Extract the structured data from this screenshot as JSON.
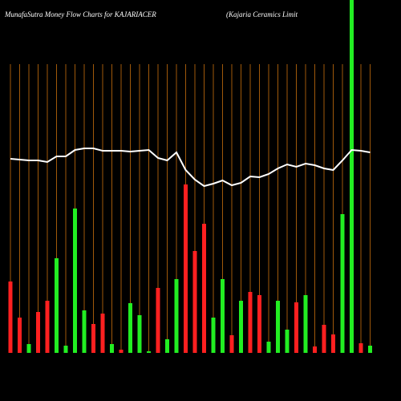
{
  "chart_data": {
    "type": "bar",
    "title": "MunafaSutra  Money Flow  Charts for KAJARIACER",
    "subtitle": "(Kajaria  Ceramics Limit",
    "ylim": [
      0,
      440
    ],
    "grid_color": "#a0590a",
    "series": [
      {
        "type": "bar",
        "colors": [
          "#ff2020",
          "#ff2020",
          "#22ee22",
          "#ff2020",
          "#ff2020",
          "#22ee22",
          "#22ee22",
          "#22ee22",
          "#22ee22",
          "#ff2020",
          "#ff2020",
          "#22ee22",
          "#ff2020",
          "#22ee22",
          "#22ee22",
          "#22ee22",
          "#ff2020",
          "#22ee22",
          "#22ee22",
          "#ff2020",
          "#ff2020",
          "#ff2020",
          "#22ee22",
          "#22ee22",
          "#ff2020",
          "#22ee22",
          "#ff2020",
          "#ff2020",
          "#22ee22",
          "#22ee22",
          "#22ee22",
          "#ff2020",
          "#22ee22",
          "#ff2020",
          "#ff2020",
          "#ff2020",
          "#22ee22",
          "#22ee22",
          "#ff2020",
          "#22ee22"
        ],
        "values": [
          89,
          44,
          11,
          51,
          65,
          118,
          9,
          180,
          53,
          36,
          49,
          11,
          4,
          62,
          47,
          2,
          81,
          17,
          92,
          210,
          127,
          161,
          44,
          92,
          22,
          65,
          76,
          72,
          14,
          65,
          29,
          63,
          72,
          8,
          35,
          23,
          173,
          440,
          12,
          9
        ]
      },
      {
        "type": "line",
        "color": "#ffffff",
        "values": [
          242,
          241,
          240,
          240,
          238,
          245,
          245,
          253,
          255,
          255,
          252,
          252,
          252,
          251,
          252,
          253,
          243,
          240,
          250,
          228,
          216,
          208,
          211,
          215,
          209,
          212,
          220,
          219,
          223,
          230,
          235,
          232,
          236,
          234,
          230,
          228,
          240,
          253,
          252,
          250
        ]
      }
    ]
  }
}
